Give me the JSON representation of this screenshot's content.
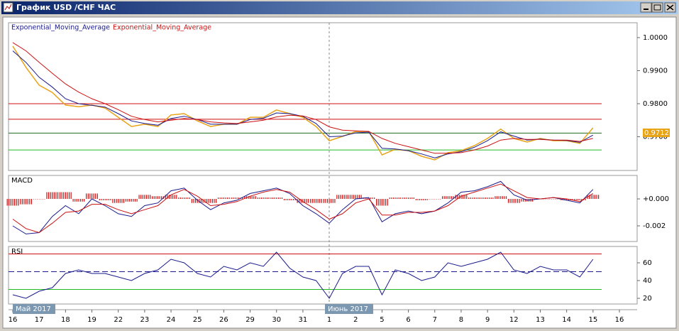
{
  "window": {
    "title": "График USD /CHF ЧАС"
  },
  "chart_data": [
    {
      "type": "line",
      "categories": [
        "16",
        null,
        "17",
        null,
        "18",
        null,
        "19",
        null,
        "22",
        null,
        "23",
        null,
        "24",
        null,
        "25",
        null,
        "26",
        null,
        "29",
        null,
        "30",
        null,
        "31",
        null,
        "1",
        null,
        "2",
        null,
        "5",
        null,
        "6",
        null,
        "7",
        null,
        "8",
        null,
        "9",
        null,
        "12",
        null,
        "13",
        null,
        "14",
        null,
        "15",
        null,
        "16"
      ],
      "period_labels": [
        "Май 2017",
        "Июнь 2017"
      ],
      "color": "#e8a317",
      "values": [
        0.9974,
        0.991,
        0.9856,
        0.9834,
        0.9796,
        0.9791,
        0.9796,
        0.9787,
        0.9759,
        0.9731,
        0.9738,
        0.9731,
        0.9766,
        0.977,
        0.9748,
        0.9731,
        0.9738,
        0.9738,
        0.9759,
        0.9759,
        0.9781,
        0.977,
        0.9759,
        0.9731,
        0.9688,
        0.9701,
        0.9716,
        0.9716,
        0.9645,
        0.9662,
        0.9658,
        0.9641,
        0.963,
        0.9652,
        0.9658,
        0.9673,
        0.9695,
        0.9723,
        0.9695,
        0.9684,
        0.9695,
        0.9688,
        0.9688,
        0.968,
        0.9727,
        null,
        null
      ],
      "series": [
        {
          "name": "Exponential_Moving_Average",
          "color": "#1a1a8c",
          "values": [
            0.996,
            0.9925,
            0.988,
            0.985,
            0.9815,
            0.98,
            0.9795,
            0.979,
            0.977,
            0.9748,
            0.974,
            0.9735,
            0.9755,
            0.9762,
            0.9752,
            0.9738,
            0.9738,
            0.9738,
            0.9752,
            0.9756,
            0.9772,
            0.977,
            0.9762,
            0.974,
            0.97,
            0.9702,
            0.9712,
            0.9714,
            0.9665,
            0.9663,
            0.9658,
            0.9648,
            0.9636,
            0.9648,
            0.9655,
            0.9668,
            0.9688,
            0.9715,
            0.9702,
            0.969,
            0.9693,
            0.969,
            0.9689,
            0.9683,
            0.9705,
            null,
            null
          ]
        },
        {
          "name": "Exponential_Moving_Average",
          "color": "#cc1111",
          "values": [
            0.9985,
            0.996,
            0.9925,
            0.9892,
            0.986,
            0.9835,
            0.9815,
            0.98,
            0.9782,
            0.9762,
            0.9752,
            0.9745,
            0.975,
            0.9755,
            0.9752,
            0.9745,
            0.9742,
            0.974,
            0.9745,
            0.975,
            0.976,
            0.9765,
            0.9763,
            0.9752,
            0.973,
            0.972,
            0.9718,
            0.9716,
            0.9695,
            0.968,
            0.967,
            0.966,
            0.965,
            0.965,
            0.9652,
            0.966,
            0.9672,
            0.969,
            0.9695,
            0.9692,
            0.9692,
            0.969,
            0.969,
            0.9686,
            0.9695,
            null,
            null
          ]
        }
      ],
      "hlines": [
        {
          "value": 0.98,
          "color": "#cc1111"
        },
        {
          "value": 0.9753,
          "color": "#cc1111"
        },
        {
          "value": 0.9711,
          "color": "#1f6b1f"
        },
        {
          "value": 0.966,
          "color": "#22bb22"
        }
      ],
      "last_price": 0.9712,
      "ylim": [
        0.9598,
        1.0045
      ],
      "yticks": [
        {
          "value": 1.0,
          "label": "1.0000"
        },
        {
          "value": 0.99,
          "label": "0.9900"
        },
        {
          "value": 0.98,
          "label": "0.9800"
        },
        {
          "value": 0.97,
          "label": "0.9700"
        }
      ]
    },
    {
      "type": "macd",
      "title": "MACD",
      "histogram": {
        "color": "#cc1111",
        "values": [
          -0.0005,
          -0.0004,
          0,
          0.0005,
          0.0005,
          -0.0002,
          0.0004,
          -0.0001,
          -0.0003,
          -0.0002,
          0.0003,
          0.0002,
          0.0003,
          0.0001,
          -0.0003,
          -0.0003,
          0.0001,
          0.0001,
          0.0002,
          0.0001,
          0.0001,
          -0.0001,
          -0.0003,
          -0.0003,
          -0.0003,
          0.0003,
          0.0003,
          0.0001,
          -0.0005,
          0.0001,
          0.0001,
          -0.0001,
          0,
          0.0002,
          0.0003,
          0.0001,
          0.0001,
          0.0002,
          -0.0003,
          -0.0002,
          0,
          0,
          -0.0001,
          -0.0001,
          0.0003,
          null,
          null
        ]
      },
      "series": [
        {
          "color": "#1a1a8c",
          "values": [
            -0.002,
            -0.0026,
            -0.0025,
            -0.0013,
            -0.0005,
            -0.0011,
            0,
            -0.0005,
            -0.0011,
            -0.0013,
            -0.0005,
            -0.0003,
            0.0006,
            0.0008,
            -0.0001,
            -0.0008,
            -0.0003,
            -0.0001,
            0.0004,
            0.0006,
            0.0008,
            0.0004,
            -0.0005,
            -0.0011,
            -0.0018,
            -0.0008,
            0,
            0.0001,
            -0.0017,
            -0.0011,
            -0.0009,
            -0.0011,
            -0.0009,
            -0.0003,
            0.0005,
            0.0006,
            0.0009,
            0.0013,
            0.0003,
            -0.0001,
            0,
            0.0001,
            -0.0001,
            -0.0003,
            0.0007,
            null,
            null
          ]
        },
        {
          "color": "#cc1111",
          "values": [
            -0.0015,
            -0.0022,
            -0.0025,
            -0.0018,
            -0.001,
            -0.0009,
            -0.0004,
            -0.0004,
            -0.0008,
            -0.0011,
            -0.0008,
            -0.0005,
            0.0003,
            0.0007,
            0.0002,
            -0.0005,
            -0.0004,
            -0.0002,
            0.0002,
            0.0005,
            0.0007,
            0.0005,
            -0.0002,
            -0.0008,
            -0.0015,
            -0.0011,
            -0.0003,
            0,
            -0.0012,
            -0.0012,
            -0.001,
            -0.001,
            -0.0009,
            -0.0005,
            0.0002,
            0.0005,
            0.0008,
            0.0011,
            0.0006,
            0.0001,
            0,
            0.0001,
            0,
            -0.0002,
            0.0004,
            null,
            null
          ]
        }
      ],
      "ylim": [
        -0.00316,
        0.00174
      ],
      "yticks": [
        {
          "value": 0,
          "label": "+0.000"
        },
        {
          "value": -0.002,
          "label": "-0.002"
        }
      ]
    },
    {
      "type": "rsi",
      "title": "RSI",
      "color": "#1a1a8c",
      "values": [
        24,
        20,
        28,
        32,
        48,
        52,
        48,
        48,
        44,
        40,
        48,
        52,
        64,
        60,
        48,
        44,
        56,
        52,
        60,
        56,
        72,
        54,
        44,
        40,
        20,
        48,
        56,
        56,
        24,
        52,
        48,
        40,
        44,
        60,
        56,
        60,
        64,
        72,
        52,
        48,
        56,
        52,
        52,
        44,
        64,
        null,
        null
      ],
      "hlines": [
        {
          "value": 70,
          "color": "#cc1111",
          "dashed": false
        },
        {
          "value": 50,
          "color": "#1a1a8c",
          "dashed": true
        },
        {
          "value": 30,
          "color": "#22bb22",
          "dashed": false
        }
      ],
      "ylim": [
        13.6,
        78.4
      ],
      "yticks": [
        20,
        40,
        60
      ]
    }
  ]
}
